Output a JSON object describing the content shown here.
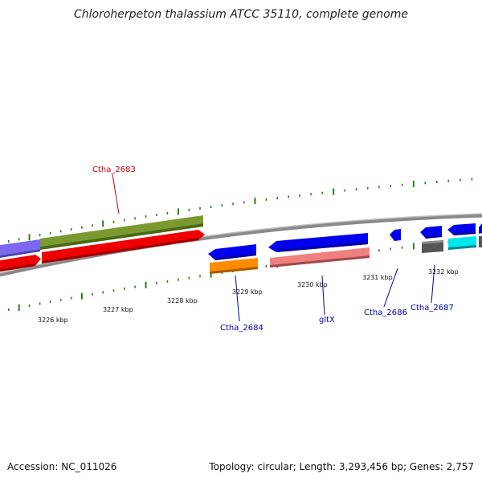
{
  "title": "Chloroherpeton thalassium ATCC 35110, complete genome",
  "footer": {
    "accession": "Accession: NC_011026",
    "topology": "Topology: circular; Length: 3,293,456 bp; Genes: 2,757"
  },
  "scale_labels": [
    "3226 kbp",
    "3227 kbp",
    "3228 kbp",
    "3229 kbp",
    "3230 kbp",
    "3231 kbp",
    "3232 kbp"
  ],
  "gene_labels": [
    {
      "name": "Ctha_2683",
      "color": "#cc0000"
    },
    {
      "name": "Ctha_2684",
      "color": "#0000aa"
    },
    {
      "name": "gltX",
      "color": "#0000aa"
    },
    {
      "name": "Ctha_2686",
      "color": "#0000aa"
    },
    {
      "name": "Ctha_2687",
      "color": "#0000aa"
    }
  ],
  "colors": {
    "backbone": "#8a8a8a",
    "ticks": "#2e7d1e",
    "forward_gene": "#ee0000",
    "reverse_gene": "#0000ee",
    "green_feature": "#6b8e23",
    "purple_feature": "#7b68ee",
    "orange_feature": "#ff8c00",
    "pink_feature": "#f08080",
    "gray_feature": "#555555",
    "cyan_feature": "#00e5ee"
  }
}
